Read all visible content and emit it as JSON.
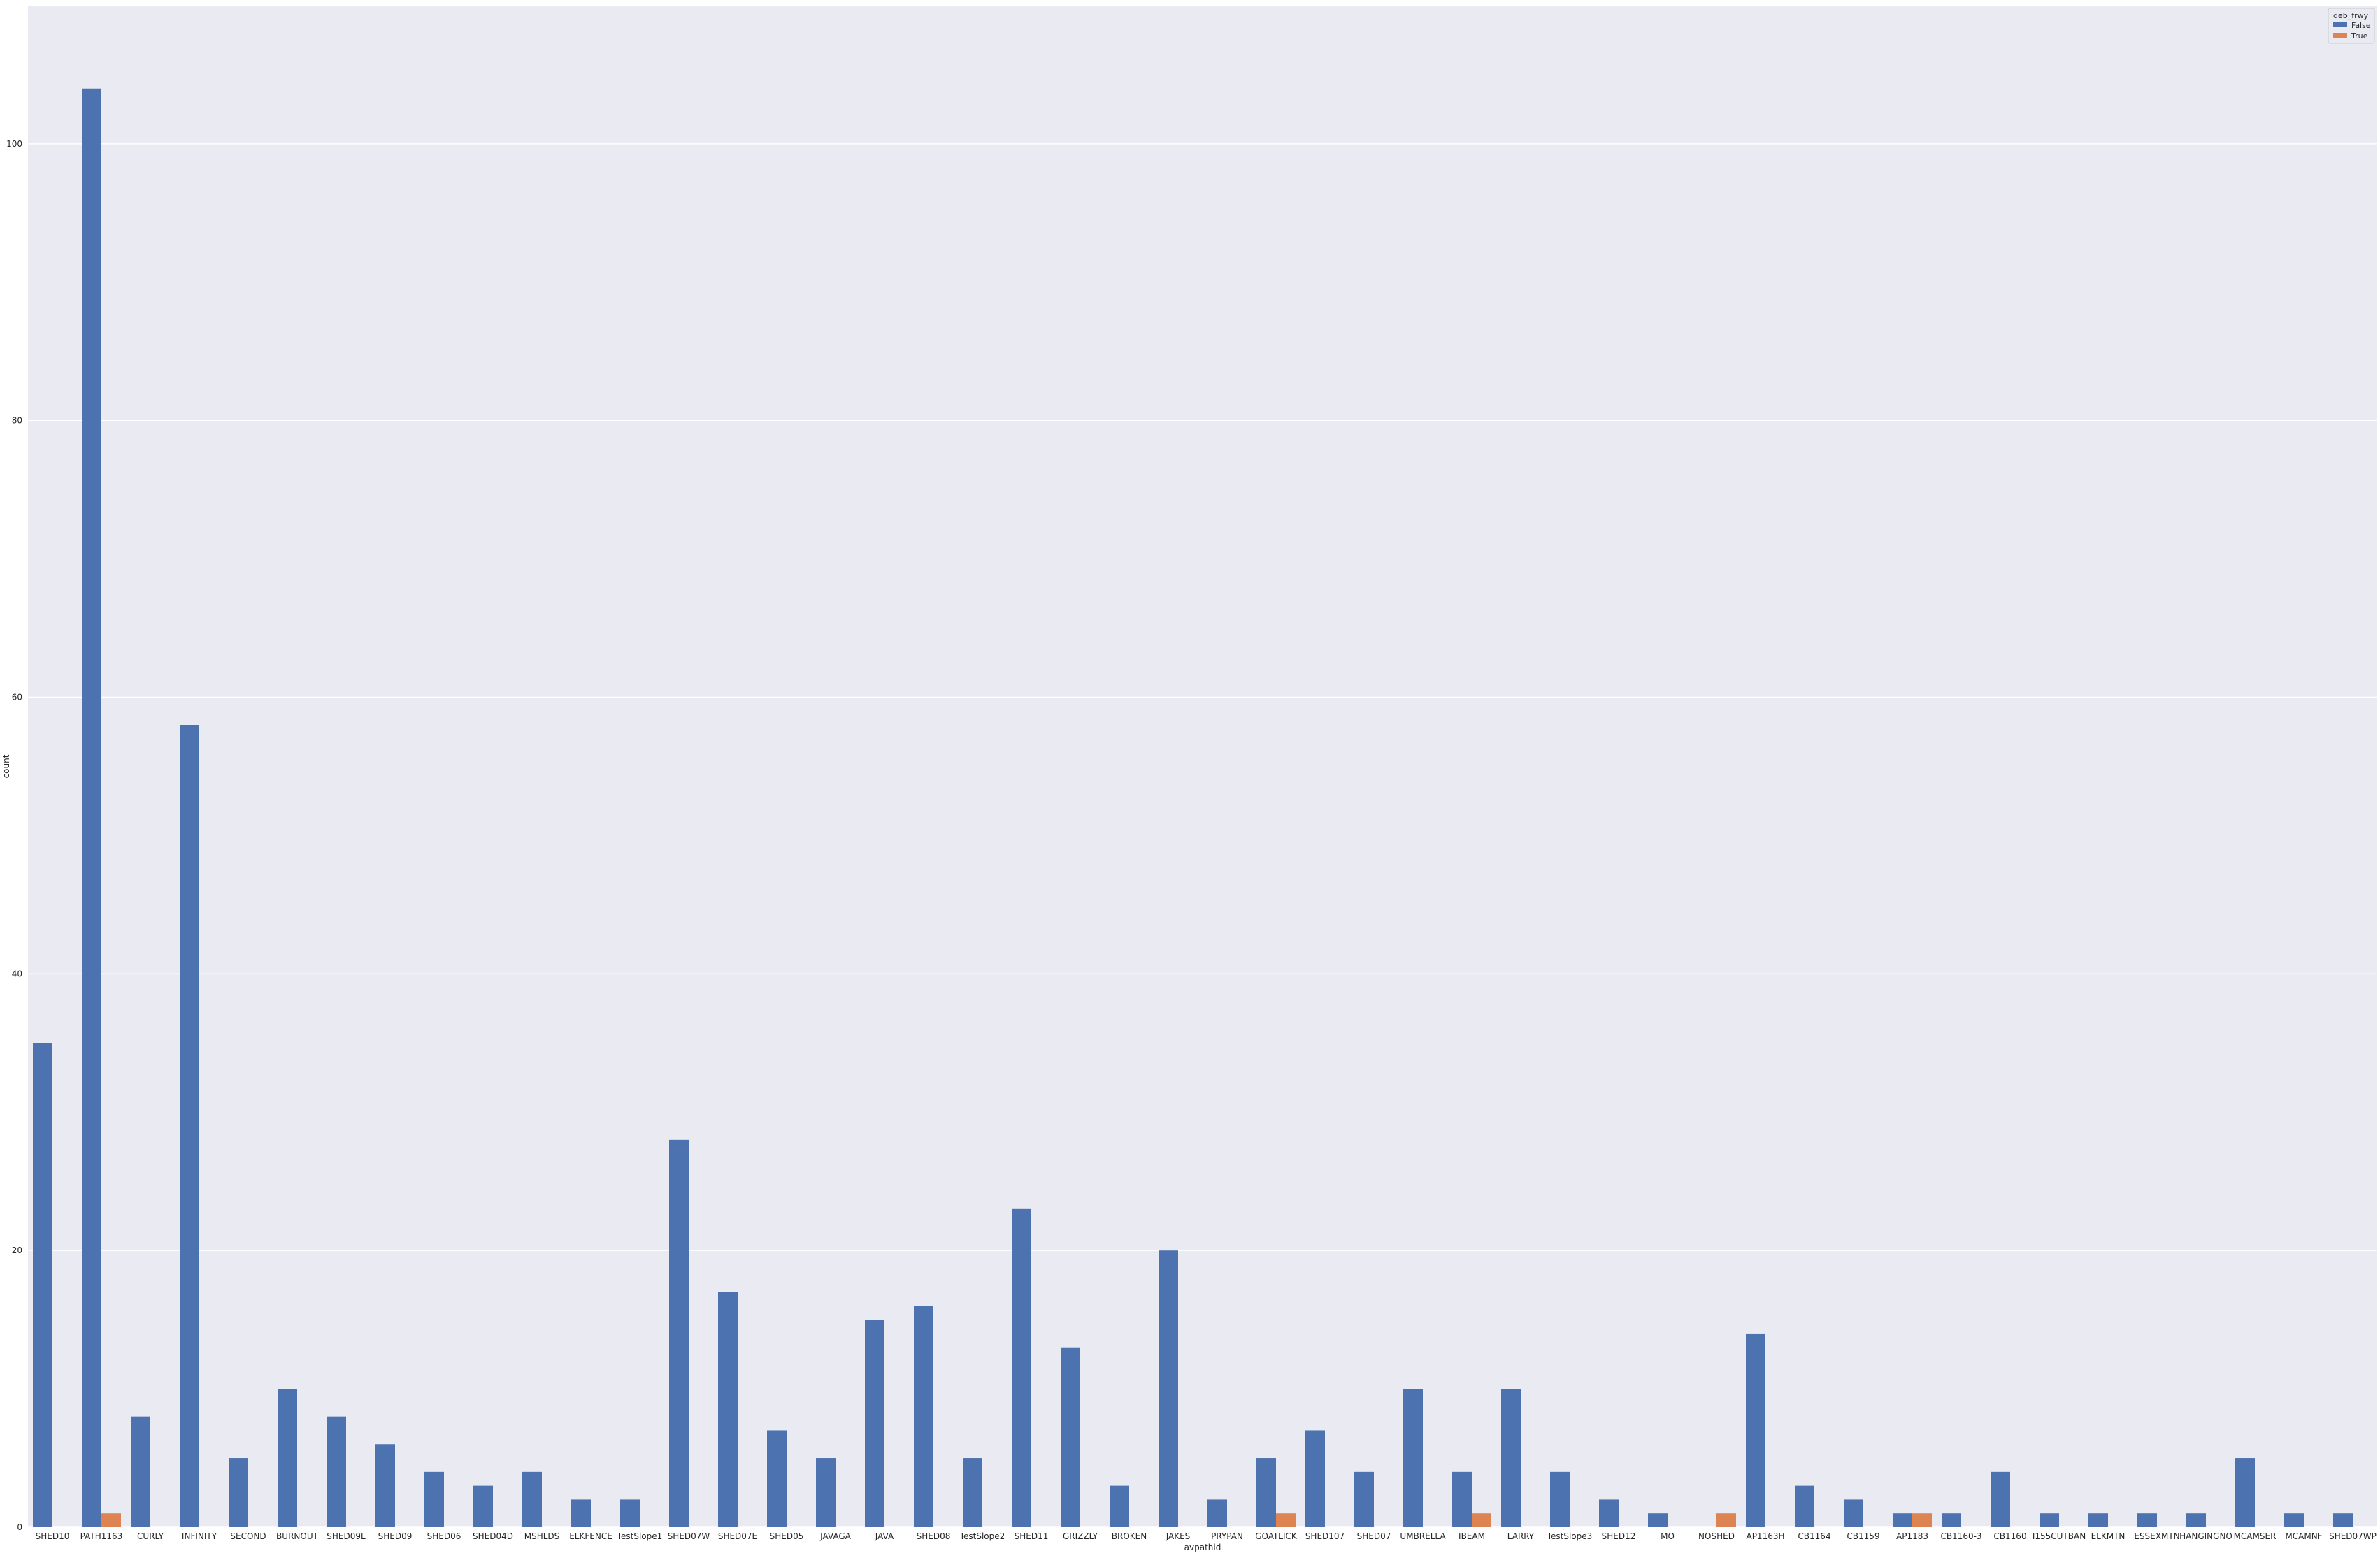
{
  "chart_data": {
    "type": "bar",
    "xlabel": "avpathid",
    "ylabel": "count",
    "ylim": [
      0,
      110
    ],
    "yticks": [
      0,
      20,
      40,
      60,
      80,
      100
    ],
    "grid": true,
    "legend": {
      "title": "deb_frwy",
      "placement": "top-right"
    },
    "categories": [
      "SHED10",
      "PATH1163",
      "CURLY",
      "INFINITY",
      "SECOND",
      "BURNOUT",
      "SHED09L",
      "SHED09",
      "SHED06",
      "SHED04D",
      "MSHLDS",
      "ELKFENCE",
      "TestSlope1",
      "SHED07W",
      "SHED07E",
      "SHED05",
      "JAVAGA",
      "JAVA",
      "SHED08",
      "TestSlope2",
      "SHED11",
      "GRIZZLY",
      "BROKEN",
      "JAKES",
      "PRYPAN",
      "GOATLICK",
      "SHED107",
      "SHED07",
      "UMBRELLA",
      "IBEAM",
      "LARRY",
      "TestSlope3",
      "SHED12",
      "MO",
      "NOSHED",
      "AP1163H",
      "CB1164",
      "CB1159",
      "AP1183",
      "CB1160-3",
      "CB1160",
      "I155CUTBAN",
      "ELKMTN",
      "ESSEXMTN",
      "HANGINGNO",
      "MCAMSER",
      "MCAMNF",
      "SHED07WP"
    ],
    "series": [
      {
        "name": "False",
        "color": "#4c72b0",
        "values": [
          35,
          104,
          8,
          58,
          5,
          10,
          8,
          6,
          4,
          3,
          4,
          2,
          2,
          28,
          17,
          7,
          5,
          15,
          16,
          5,
          23,
          13,
          3,
          20,
          2,
          5,
          7,
          4,
          10,
          4,
          10,
          4,
          2,
          1,
          0,
          14,
          3,
          2,
          1,
          1,
          4,
          1,
          1,
          1,
          1,
          5,
          1,
          1
        ]
      },
      {
        "name": "True",
        "color": "#dd8452",
        "values": [
          0,
          1,
          0,
          0,
          0,
          0,
          0,
          0,
          0,
          0,
          0,
          0,
          0,
          0,
          0,
          0,
          0,
          0,
          0,
          0,
          0,
          0,
          0,
          0,
          0,
          1,
          0,
          0,
          0,
          1,
          0,
          0,
          0,
          0,
          1,
          0,
          0,
          0,
          1,
          0,
          0,
          0,
          0,
          0,
          0,
          0,
          0,
          0
        ]
      }
    ]
  },
  "style": {
    "plot_background": "#eaeaf2",
    "grid_color": "#ffffff"
  }
}
